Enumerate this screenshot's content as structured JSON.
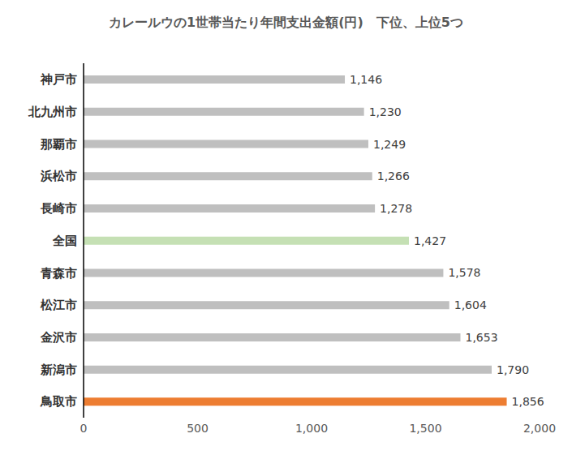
{
  "chart_data": {
    "type": "bar",
    "title": "カレールウの1世帯当たり年間支出金額(円)　下位、上位5つ",
    "orientation": "horizontal",
    "categories": [
      "神戸市",
      "北九州市",
      "那覇市",
      "浜松市",
      "長崎市",
      "全国",
      "青森市",
      "松江市",
      "金沢市",
      "新潟市",
      "鳥取市"
    ],
    "values": [
      1146,
      1230,
      1249,
      1266,
      1278,
      1427,
      1578,
      1604,
      1653,
      1790,
      1856
    ],
    "value_labels": [
      "1,146",
      "1,230",
      "1,249",
      "1,266",
      "1,278",
      "1,427",
      "1,578",
      "1,604",
      "1,653",
      "1,790",
      "1,856"
    ],
    "colors": [
      "#bfbfbf",
      "#bfbfbf",
      "#bfbfbf",
      "#bfbfbf",
      "#bfbfbf",
      "#c5e0b4",
      "#bfbfbf",
      "#bfbfbf",
      "#bfbfbf",
      "#bfbfbf",
      "#ed7d31"
    ],
    "xlim": [
      0,
      2000
    ],
    "xticks": [
      0,
      500,
      {
        "value": 1000,
        "label": "1,000"
      },
      {
        "value": 1500,
        "label": "1,500"
      },
      {
        "value": 2000,
        "label": "2,000"
      }
    ],
    "data_labels": true,
    "grid": false
  }
}
